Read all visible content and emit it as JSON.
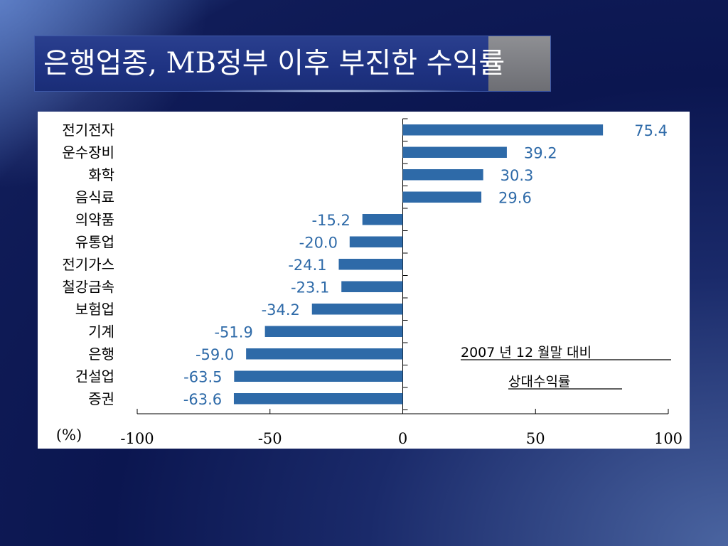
{
  "slide": {
    "title": "은행업종, MB정부 이후 부진한 수익률"
  },
  "colors": {
    "bar": "#2e6aa8",
    "value_label": "#2e6aa8",
    "title_bar": "#1f3383",
    "title_gray": "#7e7f84"
  },
  "chart_data": {
    "type": "bar",
    "orientation": "horizontal",
    "categories": [
      "전기전자",
      "운수장비",
      "화학",
      "음식료",
      "의약품",
      "유통업",
      "전기가스",
      "철강금속",
      "보험업",
      "기계",
      "은행",
      "건설업",
      "증권"
    ],
    "values": [
      75.4,
      39.2,
      30.3,
      29.6,
      -15.2,
      -20.0,
      -24.1,
      -23.1,
      -34.2,
      -51.9,
      -59.0,
      -63.5,
      -63.6
    ],
    "value_labels": [
      "75.4",
      "39.2",
      "30.3",
      "29.6",
      "-15.2",
      "-20.0",
      "-24.1",
      "-23.1",
      "-34.2",
      "-51.9",
      "-59.0",
      "-63.5",
      "-63.6"
    ],
    "x_ticks": [
      -100,
      -50,
      0,
      50,
      100
    ],
    "x_tick_labels": [
      "-100",
      "-50",
      "0",
      "50",
      "100"
    ],
    "xlim": [
      -100,
      100
    ],
    "unit_label": "(%)",
    "annotation": [
      "2007  년  12 월말   대비",
      "상대수익률"
    ],
    "grid": false,
    "legend": "none"
  }
}
